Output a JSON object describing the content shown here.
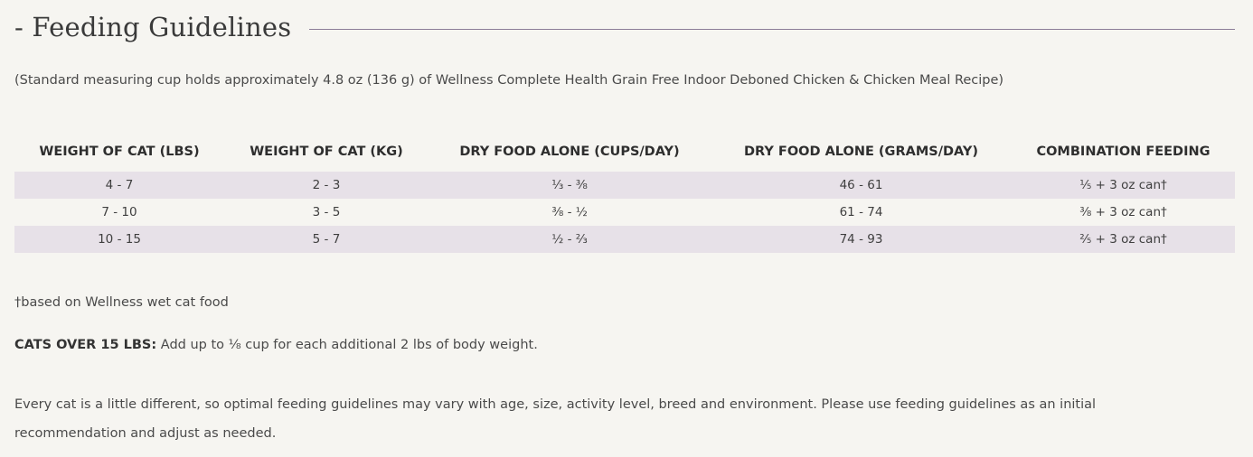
{
  "section": {
    "title": "- Feeding Guidelines"
  },
  "intro": "(Standard measuring cup holds approximately 4.8 oz (136 g) of Wellness Complete Health Grain Free Indoor Deboned Chicken & Chicken Meal Recipe)",
  "table": {
    "headers": [
      "WEIGHT OF CAT (LBS)",
      "WEIGHT OF CAT (KG)",
      "DRY FOOD ALONE (CUPS/DAY)",
      "DRY FOOD ALONE (GRAMS/DAY)",
      "COMBINATION FEEDING"
    ],
    "rows": [
      [
        "4 - 7",
        "2 - 3",
        "⅓ - ⅜",
        "46 - 61",
        "⅕ + 3 oz can†"
      ],
      [
        "7 - 10",
        "3 - 5",
        "⅜ - ½",
        "61 - 74",
        "⅜ + 3 oz can†"
      ],
      [
        "10 - 15",
        "5 - 7",
        "½ - ⅔",
        "74 - 93",
        "⅖ + 3 oz can†"
      ]
    ],
    "row_shading": [
      "#e7e1e8",
      "transparent",
      "#e7e1e8"
    ]
  },
  "footnote": "†based on Wellness wet cat food",
  "over15": {
    "label": "CATS OVER 15 LBS:",
    "text": " Add up to ⅛ cup for each additional 2 lbs of body weight."
  },
  "note": "Every cat is a little different, so optimal feeding guidelines may vary with age, size, activity level, breed and environment. Please use feeding guidelines as an initial recommendation and adjust as needed."
}
